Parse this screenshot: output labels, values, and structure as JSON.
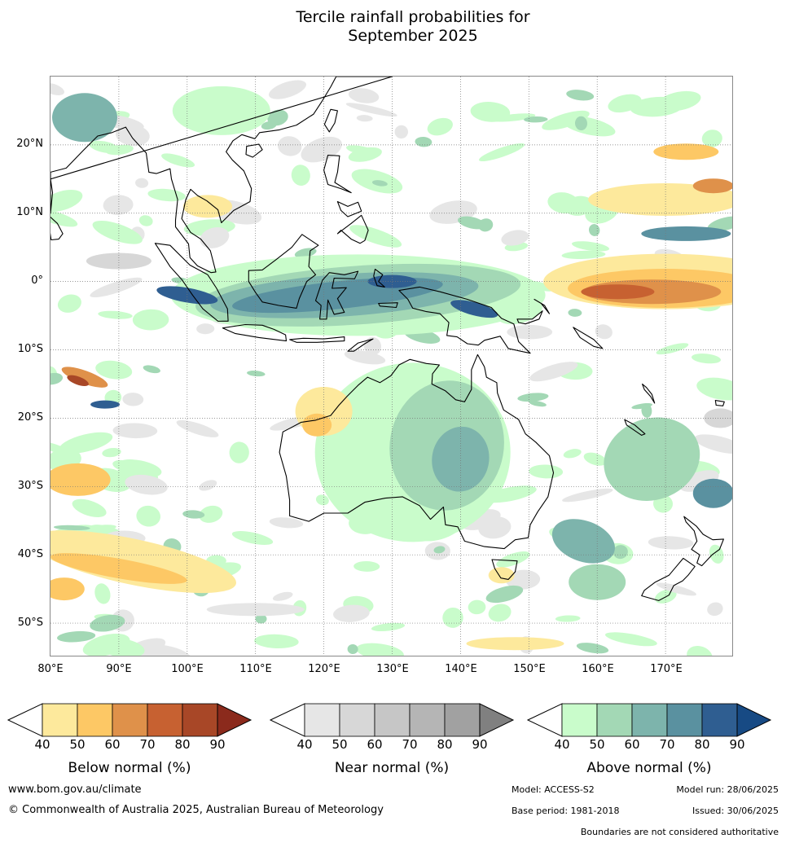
{
  "title": {
    "line1": "Tercile rainfall probabilities for",
    "line2": "September 2025"
  },
  "map": {
    "lon_range": [
      80,
      180
    ],
    "lat_range": [
      -55,
      30
    ],
    "lat_labels": [
      "20°N",
      "10°N",
      "0°",
      "10°S",
      "20°S",
      "30°S",
      "40°S",
      "50°S"
    ],
    "lon_labels": [
      "80°E",
      "90°E",
      "100°E",
      "110°E",
      "120°E",
      "130°E",
      "140°E",
      "150°E",
      "160°E",
      "170°E"
    ],
    "colors": {
      "below": [
        "#fde99c",
        "#fdc865",
        "#df914a",
        "#c76131",
        "#a84727",
        "#8b2a1c"
      ],
      "near": [
        "#e6e6e6",
        "#d7d7d7",
        "#c6c6c6",
        "#b5b5b5",
        "#a1a1a1",
        "#808080"
      ],
      "above": [
        "#c9fccb",
        "#a3d8b5",
        "#7db4ac",
        "#5a91a0",
        "#2f5e91",
        "#174a84"
      ]
    }
  },
  "colorbars": {
    "ticks": [
      "40",
      "50",
      "60",
      "70",
      "80",
      "90"
    ],
    "below_title": "Below normal (%)",
    "near_title": "Near normal (%)",
    "above_title": "Above normal (%)"
  },
  "footer": {
    "website": "www.bom.gov.au/climate",
    "copyright": "© Commonwealth of Australia 2025, Australian Bureau of Meteorology",
    "model": "Model: ACCESS-S2",
    "model_run": "Model run: 28/06/2025",
    "base_period": "Base period: 1981-2018",
    "issued": "Issued: 30/06/2025",
    "disclaimer": "Boundaries are not considered authoritative"
  }
}
